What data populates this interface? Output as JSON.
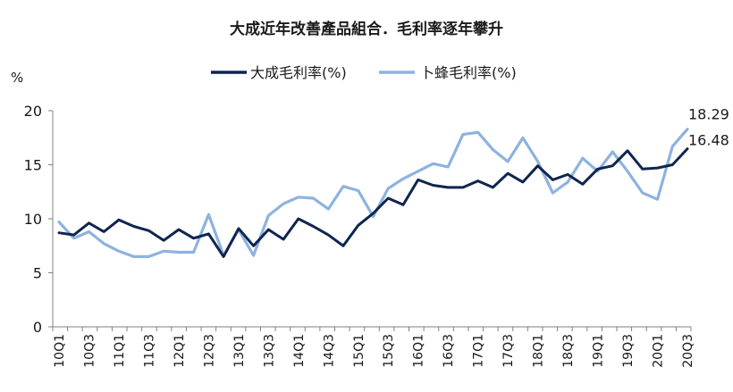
{
  "chart_data": {
    "type": "line",
    "title": "大成近年改善產品組合．毛利率逐年攀升",
    "ylabel": "%",
    "ylim": [
      0,
      20
    ],
    "yticks": [
      "0",
      "5",
      "10",
      "15",
      "20"
    ],
    "grid": false,
    "legend_position": "top",
    "x": [
      "10Q1",
      "10Q2",
      "10Q3",
      "10Q4",
      "11Q1",
      "11Q2",
      "11Q3",
      "11Q4",
      "12Q1",
      "12Q2",
      "12Q3",
      "12Q4",
      "13Q1",
      "13Q2",
      "13Q3",
      "13Q4",
      "14Q1",
      "14Q2",
      "14Q3",
      "14Q4",
      "15Q1",
      "15Q2",
      "15Q3",
      "15Q4",
      "16Q1",
      "16Q2",
      "16Q3",
      "16Q4",
      "17Q1",
      "17Q2",
      "17Q3",
      "17Q4",
      "18Q1",
      "18Q2",
      "18Q3",
      "18Q4",
      "19Q1",
      "19Q2",
      "19Q3",
      "19Q4",
      "20Q1",
      "20Q2",
      "20Q3"
    ],
    "xtick_labels": [
      "10Q1",
      "10Q3",
      "11Q1",
      "11Q3",
      "12Q1",
      "12Q3",
      "13Q1",
      "13Q3",
      "14Q1",
      "14Q3",
      "15Q1",
      "15Q3",
      "16Q1",
      "16Q3",
      "17Q1",
      "17Q3",
      "18Q1",
      "18Q3",
      "19Q1",
      "19Q3",
      "20Q1",
      "20Q3"
    ],
    "series": [
      {
        "name": "大成毛利率(%)",
        "color": "#0f2550",
        "values": [
          8.7,
          8.5,
          9.6,
          8.8,
          9.9,
          9.3,
          8.9,
          8.0,
          9.0,
          8.2,
          8.6,
          6.5,
          9.1,
          7.5,
          9.0,
          8.1,
          10.0,
          9.3,
          8.5,
          7.5,
          9.4,
          10.5,
          11.9,
          11.3,
          13.6,
          13.1,
          12.9,
          12.9,
          13.5,
          12.9,
          14.2,
          13.4,
          14.9,
          13.6,
          14.1,
          13.2,
          14.6,
          14.9,
          16.3,
          14.6,
          14.7,
          15.0,
          16.48
        ]
      },
      {
        "name": "卜蜂毛利率(%)",
        "color": "#8db3df",
        "values": [
          9.7,
          8.2,
          8.8,
          7.7,
          7.0,
          6.5,
          6.5,
          7.0,
          6.9,
          6.9,
          10.4,
          6.6,
          9.0,
          6.6,
          10.3,
          11.4,
          12.0,
          11.9,
          10.9,
          13.0,
          12.6,
          10.2,
          12.8,
          13.7,
          14.4,
          15.1,
          14.8,
          17.8,
          18.0,
          16.4,
          15.3,
          17.5,
          15.3,
          12.4,
          13.4,
          15.6,
          14.4,
          16.2,
          14.4,
          12.4,
          11.8,
          16.7,
          18.29
        ]
      }
    ],
    "data_labels": [
      "18.29",
      "16.48"
    ]
  }
}
